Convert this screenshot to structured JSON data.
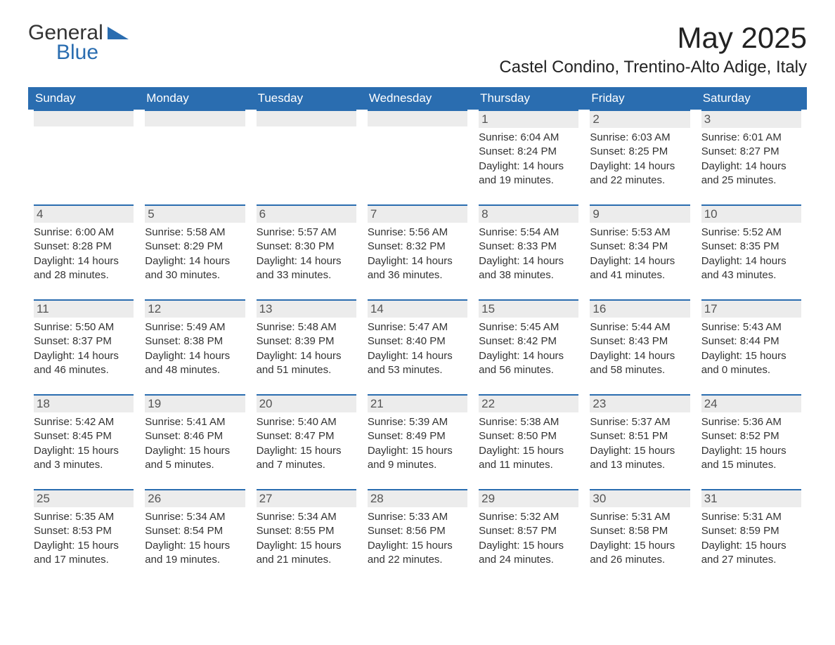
{
  "logo": {
    "text1": "General",
    "text2": "Blue",
    "primary_color": "#2a6db0",
    "text_color": "#333333"
  },
  "title": "May 2025",
  "location": "Castel Condino, Trentino-Alto Adige, Italy",
  "header_bg": "#2a6db0",
  "header_fg": "#ffffff",
  "cell_border_color": "#2a6db0",
  "cell_label_bg": "#ececec",
  "background": "#ffffff",
  "day_headers": [
    "Sunday",
    "Monday",
    "Tuesday",
    "Wednesday",
    "Thursday",
    "Friday",
    "Saturday"
  ],
  "weeks": [
    [
      {
        "empty": true
      },
      {
        "empty": true
      },
      {
        "empty": true
      },
      {
        "empty": true
      },
      {
        "day": "1",
        "sunrise": "Sunrise: 6:04 AM",
        "sunset": "Sunset: 8:24 PM",
        "daylight": "Daylight: 14 hours and 19 minutes."
      },
      {
        "day": "2",
        "sunrise": "Sunrise: 6:03 AM",
        "sunset": "Sunset: 8:25 PM",
        "daylight": "Daylight: 14 hours and 22 minutes."
      },
      {
        "day": "3",
        "sunrise": "Sunrise: 6:01 AM",
        "sunset": "Sunset: 8:27 PM",
        "daylight": "Daylight: 14 hours and 25 minutes."
      }
    ],
    [
      {
        "day": "4",
        "sunrise": "Sunrise: 6:00 AM",
        "sunset": "Sunset: 8:28 PM",
        "daylight": "Daylight: 14 hours and 28 minutes."
      },
      {
        "day": "5",
        "sunrise": "Sunrise: 5:58 AM",
        "sunset": "Sunset: 8:29 PM",
        "daylight": "Daylight: 14 hours and 30 minutes."
      },
      {
        "day": "6",
        "sunrise": "Sunrise: 5:57 AM",
        "sunset": "Sunset: 8:30 PM",
        "daylight": "Daylight: 14 hours and 33 minutes."
      },
      {
        "day": "7",
        "sunrise": "Sunrise: 5:56 AM",
        "sunset": "Sunset: 8:32 PM",
        "daylight": "Daylight: 14 hours and 36 minutes."
      },
      {
        "day": "8",
        "sunrise": "Sunrise: 5:54 AM",
        "sunset": "Sunset: 8:33 PM",
        "daylight": "Daylight: 14 hours and 38 minutes."
      },
      {
        "day": "9",
        "sunrise": "Sunrise: 5:53 AM",
        "sunset": "Sunset: 8:34 PM",
        "daylight": "Daylight: 14 hours and 41 minutes."
      },
      {
        "day": "10",
        "sunrise": "Sunrise: 5:52 AM",
        "sunset": "Sunset: 8:35 PM",
        "daylight": "Daylight: 14 hours and 43 minutes."
      }
    ],
    [
      {
        "day": "11",
        "sunrise": "Sunrise: 5:50 AM",
        "sunset": "Sunset: 8:37 PM",
        "daylight": "Daylight: 14 hours and 46 minutes."
      },
      {
        "day": "12",
        "sunrise": "Sunrise: 5:49 AM",
        "sunset": "Sunset: 8:38 PM",
        "daylight": "Daylight: 14 hours and 48 minutes."
      },
      {
        "day": "13",
        "sunrise": "Sunrise: 5:48 AM",
        "sunset": "Sunset: 8:39 PM",
        "daylight": "Daylight: 14 hours and 51 minutes."
      },
      {
        "day": "14",
        "sunrise": "Sunrise: 5:47 AM",
        "sunset": "Sunset: 8:40 PM",
        "daylight": "Daylight: 14 hours and 53 minutes."
      },
      {
        "day": "15",
        "sunrise": "Sunrise: 5:45 AM",
        "sunset": "Sunset: 8:42 PM",
        "daylight": "Daylight: 14 hours and 56 minutes."
      },
      {
        "day": "16",
        "sunrise": "Sunrise: 5:44 AM",
        "sunset": "Sunset: 8:43 PM",
        "daylight": "Daylight: 14 hours and 58 minutes."
      },
      {
        "day": "17",
        "sunrise": "Sunrise: 5:43 AM",
        "sunset": "Sunset: 8:44 PM",
        "daylight": "Daylight: 15 hours and 0 minutes."
      }
    ],
    [
      {
        "day": "18",
        "sunrise": "Sunrise: 5:42 AM",
        "sunset": "Sunset: 8:45 PM",
        "daylight": "Daylight: 15 hours and 3 minutes."
      },
      {
        "day": "19",
        "sunrise": "Sunrise: 5:41 AM",
        "sunset": "Sunset: 8:46 PM",
        "daylight": "Daylight: 15 hours and 5 minutes."
      },
      {
        "day": "20",
        "sunrise": "Sunrise: 5:40 AM",
        "sunset": "Sunset: 8:47 PM",
        "daylight": "Daylight: 15 hours and 7 minutes."
      },
      {
        "day": "21",
        "sunrise": "Sunrise: 5:39 AM",
        "sunset": "Sunset: 8:49 PM",
        "daylight": "Daylight: 15 hours and 9 minutes."
      },
      {
        "day": "22",
        "sunrise": "Sunrise: 5:38 AM",
        "sunset": "Sunset: 8:50 PM",
        "daylight": "Daylight: 15 hours and 11 minutes."
      },
      {
        "day": "23",
        "sunrise": "Sunrise: 5:37 AM",
        "sunset": "Sunset: 8:51 PM",
        "daylight": "Daylight: 15 hours and 13 minutes."
      },
      {
        "day": "24",
        "sunrise": "Sunrise: 5:36 AM",
        "sunset": "Sunset: 8:52 PM",
        "daylight": "Daylight: 15 hours and 15 minutes."
      }
    ],
    [
      {
        "day": "25",
        "sunrise": "Sunrise: 5:35 AM",
        "sunset": "Sunset: 8:53 PM",
        "daylight": "Daylight: 15 hours and 17 minutes."
      },
      {
        "day": "26",
        "sunrise": "Sunrise: 5:34 AM",
        "sunset": "Sunset: 8:54 PM",
        "daylight": "Daylight: 15 hours and 19 minutes."
      },
      {
        "day": "27",
        "sunrise": "Sunrise: 5:34 AM",
        "sunset": "Sunset: 8:55 PM",
        "daylight": "Daylight: 15 hours and 21 minutes."
      },
      {
        "day": "28",
        "sunrise": "Sunrise: 5:33 AM",
        "sunset": "Sunset: 8:56 PM",
        "daylight": "Daylight: 15 hours and 22 minutes."
      },
      {
        "day": "29",
        "sunrise": "Sunrise: 5:32 AM",
        "sunset": "Sunset: 8:57 PM",
        "daylight": "Daylight: 15 hours and 24 minutes."
      },
      {
        "day": "30",
        "sunrise": "Sunrise: 5:31 AM",
        "sunset": "Sunset: 8:58 PM",
        "daylight": "Daylight: 15 hours and 26 minutes."
      },
      {
        "day": "31",
        "sunrise": "Sunrise: 5:31 AM",
        "sunset": "Sunset: 8:59 PM",
        "daylight": "Daylight: 15 hours and 27 minutes."
      }
    ]
  ]
}
